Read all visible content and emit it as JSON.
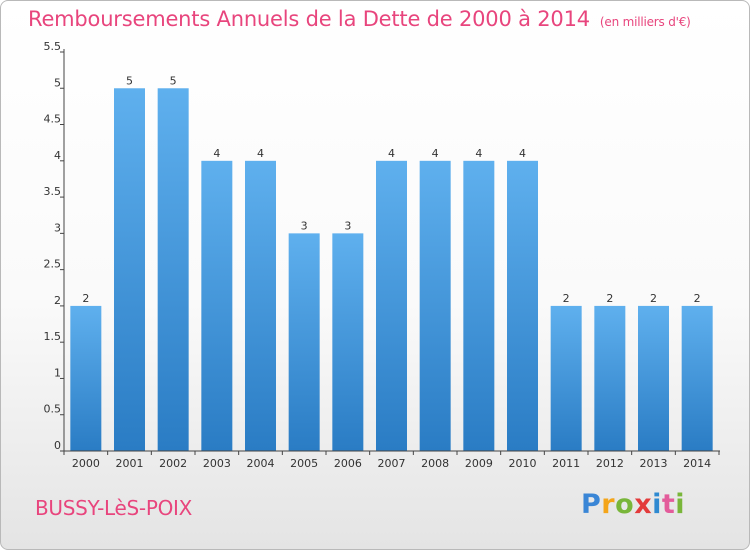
{
  "header": {
    "title": "Remboursements Annuels de la Dette de 2000 à 2014",
    "unit": "(en milliers d'€)"
  },
  "footer": {
    "place": "BUSSY-LèS-POIX",
    "logo": "Proxiti"
  },
  "colors": {
    "bar_top": "#5fb0ee",
    "bar_bottom": "#2a7cc4",
    "title": "#e8457d"
  },
  "chart_data": {
    "type": "bar",
    "title": "Remboursements Annuels de la Dette de 2000 à 2014",
    "xlabel": "",
    "ylabel": "",
    "categories": [
      "2000",
      "2001",
      "2002",
      "2003",
      "2004",
      "2005",
      "2006",
      "2007",
      "2008",
      "2009",
      "2010",
      "2011",
      "2012",
      "2013",
      "2014"
    ],
    "values": [
      2,
      5,
      5,
      4,
      4,
      3,
      3,
      4,
      4,
      4,
      4,
      2,
      2,
      2,
      2
    ],
    "data_labels": [
      "2",
      "5",
      "5",
      "4",
      "4",
      "3",
      "3",
      "4",
      "4",
      "4",
      "4",
      "2",
      "2",
      "2",
      "2"
    ],
    "yticks": [
      0,
      0.5,
      1,
      1.5,
      2,
      2.5,
      3,
      3.5,
      4,
      4.5,
      5,
      5.5
    ],
    "ytick_labels": [
      "0",
      "0.5",
      "1",
      "1.5",
      "2",
      "2.5",
      "3",
      "3.5",
      "4",
      "4.5",
      "5",
      "5.5"
    ],
    "ylim": [
      0,
      5.5
    ],
    "grid": false,
    "legend": "none"
  }
}
